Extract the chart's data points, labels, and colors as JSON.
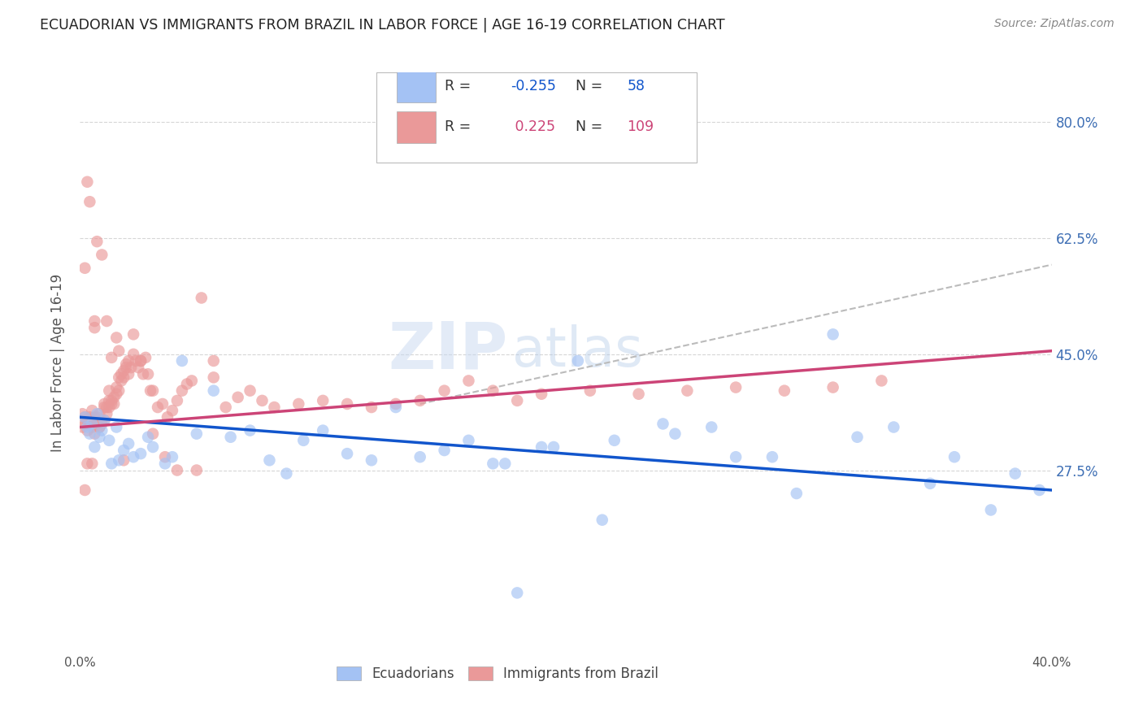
{
  "title": "ECUADORIAN VS IMMIGRANTS FROM BRAZIL IN LABOR FORCE | AGE 16-19 CORRELATION CHART",
  "source": "Source: ZipAtlas.com",
  "ylabel": "In Labor Force | Age 16-19",
  "xlim": [
    0.0,
    0.4
  ],
  "ylim": [
    0.0,
    0.875
  ],
  "ytick_positions": [
    0.275,
    0.45,
    0.625,
    0.8
  ],
  "ytick_labels": [
    "27.5%",
    "45.0%",
    "62.5%",
    "80.0%"
  ],
  "blue_color": "#a4c2f4",
  "pink_color": "#ea9999",
  "blue_line_color": "#1155cc",
  "pink_line_color": "#cc4477",
  "blue_R": -0.255,
  "blue_N": 58,
  "pink_R": 0.225,
  "pink_N": 109,
  "blue_line_x0": 0.0,
  "blue_line_y0": 0.355,
  "blue_line_x1": 0.4,
  "blue_line_y1": 0.245,
  "pink_line_x0": 0.0,
  "pink_line_y0": 0.34,
  "pink_line_x1": 0.4,
  "pink_line_y1": 0.455,
  "dashed_line_x0": 0.14,
  "dashed_line_y0": 0.375,
  "dashed_line_x1": 0.4,
  "dashed_line_y1": 0.585,
  "watermark_line1": "ZIP",
  "watermark_line2": "atlas",
  "legend_blue_label": "Ecuadorians",
  "legend_pink_label": "Immigrants from Brazil",
  "blue_x": [
    0.002,
    0.003,
    0.004,
    0.005,
    0.006,
    0.007,
    0.008,
    0.009,
    0.01,
    0.012,
    0.013,
    0.015,
    0.016,
    0.018,
    0.02,
    0.022,
    0.025,
    0.028,
    0.03,
    0.035,
    0.038,
    0.042,
    0.048,
    0.055,
    0.062,
    0.07,
    0.078,
    0.085,
    0.092,
    0.1,
    0.11,
    0.12,
    0.13,
    0.14,
    0.15,
    0.16,
    0.17,
    0.18,
    0.19,
    0.205,
    0.22,
    0.24,
    0.26,
    0.285,
    0.31,
    0.335,
    0.36,
    0.385,
    0.395,
    0.375,
    0.35,
    0.32,
    0.295,
    0.27,
    0.245,
    0.215,
    0.195,
    0.175
  ],
  "blue_y": [
    0.355,
    0.34,
    0.33,
    0.345,
    0.31,
    0.36,
    0.325,
    0.335,
    0.35,
    0.32,
    0.285,
    0.34,
    0.29,
    0.305,
    0.315,
    0.295,
    0.3,
    0.325,
    0.31,
    0.285,
    0.295,
    0.44,
    0.33,
    0.395,
    0.325,
    0.335,
    0.29,
    0.27,
    0.32,
    0.335,
    0.3,
    0.29,
    0.37,
    0.295,
    0.305,
    0.32,
    0.285,
    0.09,
    0.31,
    0.44,
    0.32,
    0.345,
    0.34,
    0.295,
    0.48,
    0.34,
    0.295,
    0.27,
    0.245,
    0.215,
    0.255,
    0.325,
    0.24,
    0.295,
    0.33,
    0.2,
    0.31,
    0.285
  ],
  "pink_x": [
    0.001,
    0.001,
    0.002,
    0.002,
    0.003,
    0.003,
    0.004,
    0.004,
    0.005,
    0.005,
    0.005,
    0.006,
    0.006,
    0.007,
    0.007,
    0.008,
    0.008,
    0.009,
    0.009,
    0.01,
    0.01,
    0.011,
    0.011,
    0.012,
    0.012,
    0.013,
    0.013,
    0.014,
    0.014,
    0.015,
    0.015,
    0.016,
    0.016,
    0.017,
    0.017,
    0.018,
    0.018,
    0.019,
    0.019,
    0.02,
    0.02,
    0.021,
    0.022,
    0.023,
    0.024,
    0.025,
    0.026,
    0.027,
    0.028,
    0.029,
    0.03,
    0.032,
    0.034,
    0.036,
    0.038,
    0.04,
    0.042,
    0.044,
    0.046,
    0.05,
    0.055,
    0.06,
    0.065,
    0.07,
    0.075,
    0.08,
    0.09,
    0.1,
    0.11,
    0.12,
    0.13,
    0.14,
    0.15,
    0.16,
    0.17,
    0.18,
    0.19,
    0.21,
    0.23,
    0.25,
    0.27,
    0.29,
    0.31,
    0.33,
    0.006,
    0.008,
    0.01,
    0.012,
    0.015,
    0.018,
    0.003,
    0.004,
    0.007,
    0.009,
    0.002,
    0.006,
    0.011,
    0.013,
    0.016,
    0.022,
    0.025,
    0.03,
    0.035,
    0.04,
    0.048,
    0.055,
    0.005,
    0.003,
    0.002
  ],
  "pink_y": [
    0.34,
    0.36,
    0.345,
    0.355,
    0.335,
    0.35,
    0.355,
    0.345,
    0.365,
    0.35,
    0.34,
    0.355,
    0.33,
    0.345,
    0.355,
    0.34,
    0.36,
    0.345,
    0.35,
    0.37,
    0.35,
    0.37,
    0.36,
    0.38,
    0.37,
    0.38,
    0.375,
    0.385,
    0.375,
    0.39,
    0.4,
    0.395,
    0.415,
    0.41,
    0.42,
    0.415,
    0.425,
    0.43,
    0.435,
    0.42,
    0.44,
    0.43,
    0.45,
    0.44,
    0.43,
    0.44,
    0.42,
    0.445,
    0.42,
    0.395,
    0.395,
    0.37,
    0.375,
    0.355,
    0.365,
    0.38,
    0.395,
    0.405,
    0.41,
    0.535,
    0.415,
    0.37,
    0.385,
    0.395,
    0.38,
    0.37,
    0.375,
    0.38,
    0.375,
    0.37,
    0.375,
    0.38,
    0.395,
    0.41,
    0.395,
    0.38,
    0.39,
    0.395,
    0.39,
    0.395,
    0.4,
    0.395,
    0.4,
    0.41,
    0.5,
    0.34,
    0.375,
    0.395,
    0.475,
    0.29,
    0.71,
    0.68,
    0.62,
    0.6,
    0.58,
    0.49,
    0.5,
    0.445,
    0.455,
    0.48,
    0.44,
    0.33,
    0.295,
    0.275,
    0.275,
    0.44,
    0.285,
    0.285,
    0.245
  ]
}
